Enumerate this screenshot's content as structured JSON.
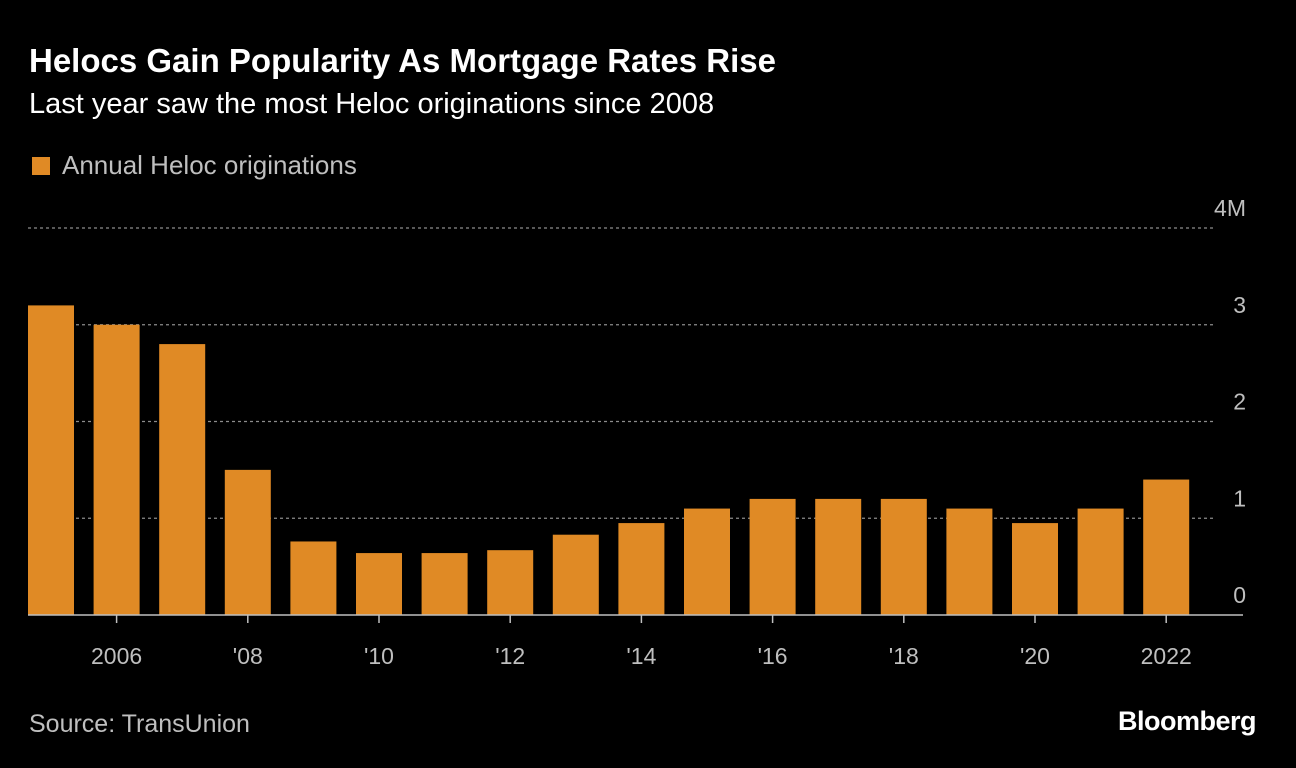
{
  "header": {
    "title": "Helocs Gain Popularity As Mortgage Rates Rise",
    "subtitle": "Last year saw the most Heloc originations since 2008"
  },
  "footer": {
    "source": "Source: TransUnion",
    "brand": "Bloomberg"
  },
  "colors": {
    "background": "#000000",
    "bar": "#e08a25",
    "grid": "#8c8c8c",
    "axis": "#bfbfbf"
  },
  "chart_data": {
    "type": "bar",
    "title": "Helocs Gain Popularity As Mortgage Rates Rise",
    "subtitle": "Last year saw the most Heloc originations since 2008",
    "legend": [
      "Annual Heloc originations"
    ],
    "legend_position": "top-left",
    "categories": [
      "2005",
      "2006",
      "2007",
      "2008",
      "2009",
      "2010",
      "2011",
      "2012",
      "2013",
      "2014",
      "2015",
      "2016",
      "2017",
      "2018",
      "2019",
      "2020",
      "2021",
      "2022"
    ],
    "series": [
      {
        "name": "Annual Heloc originations",
        "values": [
          3.2,
          3.0,
          2.8,
          1.5,
          0.76,
          0.64,
          0.64,
          0.67,
          0.83,
          0.95,
          1.1,
          1.2,
          1.2,
          1.2,
          1.1,
          0.95,
          1.1,
          1.4
        ]
      }
    ],
    "x_ticks": [
      {
        "category": "2006",
        "label": "2006"
      },
      {
        "category": "2008",
        "label": "'08"
      },
      {
        "category": "2010",
        "label": "'10"
      },
      {
        "category": "2012",
        "label": "'12"
      },
      {
        "category": "2014",
        "label": "'14"
      },
      {
        "category": "2016",
        "label": "'16"
      },
      {
        "category": "2018",
        "label": "'18"
      },
      {
        "category": "2020",
        "label": "'20"
      },
      {
        "category": "2022",
        "label": "2022"
      }
    ],
    "y_ticks": [
      {
        "value": 0,
        "label": "0"
      },
      {
        "value": 1,
        "label": "1"
      },
      {
        "value": 2,
        "label": "2"
      },
      {
        "value": 3,
        "label": "3"
      },
      {
        "value": 4,
        "label": "4M"
      }
    ],
    "ylim": [
      0,
      4
    ],
    "xlabel": "",
    "ylabel": "",
    "grid": true,
    "y_axis_side": "right"
  }
}
